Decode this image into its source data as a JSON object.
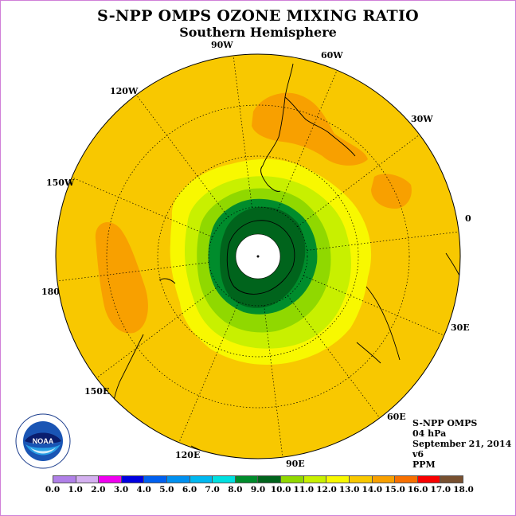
{
  "title": "S-NPP OMPS OZONE MIXING RATIO",
  "subtitle": "Southern Hemisphere",
  "longitude_labels": [
    "90W",
    "60W",
    "30W",
    "0",
    "30E",
    "60E",
    "90E",
    "120E",
    "150E",
    "180",
    "150W",
    "120W"
  ],
  "info": {
    "instrument": "S-NPP OMPS",
    "pressure": "04 hPa",
    "date": "September 21, 2014",
    "version": "v6",
    "units": "PPM"
  },
  "logo": {
    "text": "NOAA",
    "ring_text": "NATIONAL OCEANIC AND ATMOSPHERIC ADMINISTRATION",
    "ring_text_bottom": "U.S. DEPARTMENT OF COMMERCE"
  },
  "colorbar": {
    "ticks": [
      "0.0",
      "1.0",
      "2.0",
      "3.0",
      "4.0",
      "5.0",
      "6.0",
      "7.0",
      "8.0",
      "9.0",
      "10.0",
      "11.0",
      "12.0",
      "13.0",
      "14.0",
      "15.0",
      "16.0",
      "17.0",
      "18.0"
    ],
    "colors": [
      "#b080e8",
      "#d4b0f0",
      "#f000f0",
      "#0000e0",
      "#0060f0",
      "#0090f0",
      "#00b8f0",
      "#00e0e0",
      "#008c2c",
      "#00641c",
      "#90d800",
      "#c8f000",
      "#f8f800",
      "#f8c800",
      "#f8a000",
      "#f87000",
      "#f80000",
      "#785030"
    ]
  },
  "colors": {
    "background_field": "#f8c800",
    "higher": "#f8a000",
    "yellow": "#f8f800",
    "light_green": "#c8f000",
    "green": "#90d800",
    "dark_green": "#008c2c",
    "darkest_green": "#00641c",
    "missing": "#ffffff"
  }
}
